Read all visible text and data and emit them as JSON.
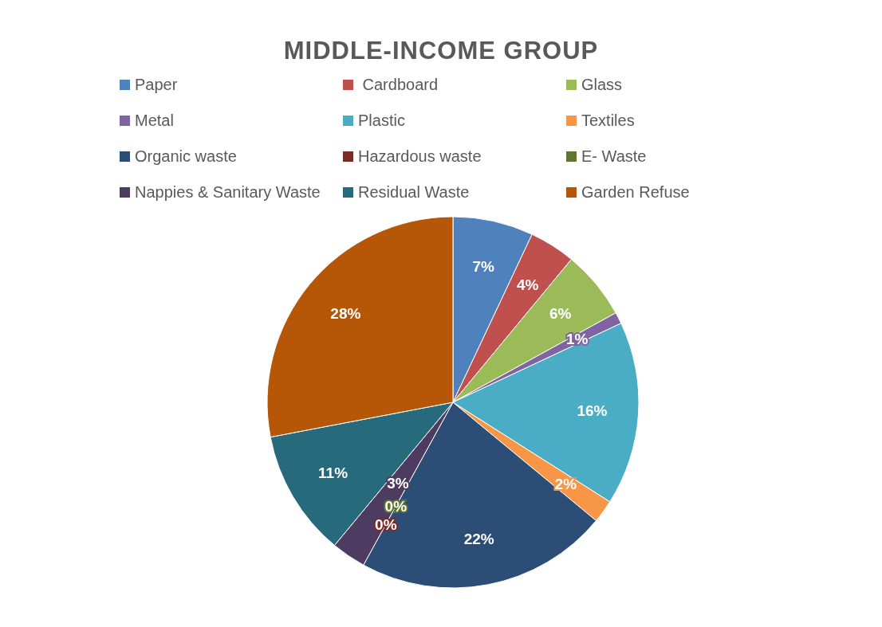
{
  "chart_data": {
    "type": "pie",
    "title": "MIDDLE-INCOME GROUP",
    "categories": [
      "Paper",
      " Cardboard",
      "Glass",
      "Metal",
      "Plastic",
      "Textiles",
      "Organic waste",
      "Hazardous waste",
      "E- Waste",
      "Nappies & Sanitary Waste",
      "Residual Waste",
      "Garden Refuse"
    ],
    "values": [
      7,
      4,
      6,
      1,
      16,
      2,
      22,
      0,
      0,
      3,
      11,
      28
    ],
    "colors": [
      "#4f81bd",
      "#c0504d",
      "#9bbb59",
      "#8064a2",
      "#4bacc6",
      "#f79646",
      "#2c4d75",
      "#772c2a",
      "#5f7530",
      "#4d3b62",
      "#276a7c",
      "#b65708"
    ],
    "value_labels": [
      "7%",
      "4%",
      "6%",
      "1%",
      "16%",
      "2%",
      "22%",
      "0%",
      "0%",
      "3%",
      "11%",
      "28%"
    ],
    "legend": "top"
  }
}
